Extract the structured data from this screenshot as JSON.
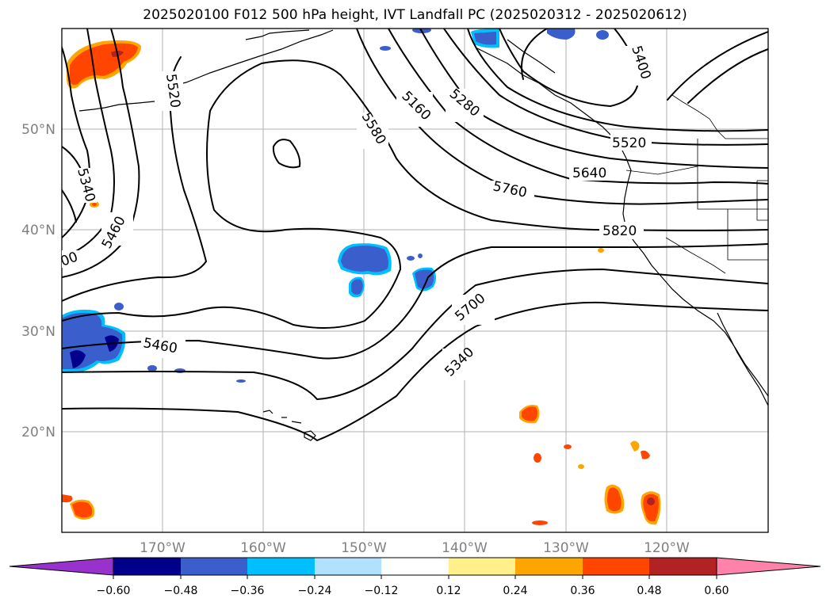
{
  "title": "2025020100 F012 500 hPa height, IVT Landfall PC (2025020312 - 2025020612)",
  "latitude_labels": [
    "50°N",
    "40°N",
    "30°N",
    "20°N"
  ],
  "longitude_labels": [
    "170°W",
    "160°W",
    "150°W",
    "140°W",
    "130°W",
    "120°W"
  ],
  "contour_labels": [
    "5520",
    "5340",
    "5460",
    "5580",
    "5160",
    "5280",
    "5400",
    "5520",
    "5640",
    "5760",
    "5820",
    "5700",
    "5340",
    "5460",
    "00"
  ],
  "colorbar": {
    "ticks": [
      "−0.60",
      "−0.48",
      "−0.36",
      "−0.24",
      "−0.12",
      "0.12",
      "0.24",
      "0.36",
      "0.48",
      "0.60"
    ],
    "colors": [
      "#9932cc",
      "#00008b",
      "#3a5fcd",
      "#00bfff",
      "#b0e2ff",
      "#ffffff",
      "#fff08c",
      "#ffa500",
      "#ff4500",
      "#b22222",
      "#ff82ab"
    ]
  },
  "shading_colors": {
    "negative_dark": "#00008b",
    "negative_mid": "#3a5fcd",
    "negative_light": "#00bfff",
    "positive_light": "#ffa500",
    "positive_mid": "#ff4500",
    "positive_dark": "#b22222"
  }
}
